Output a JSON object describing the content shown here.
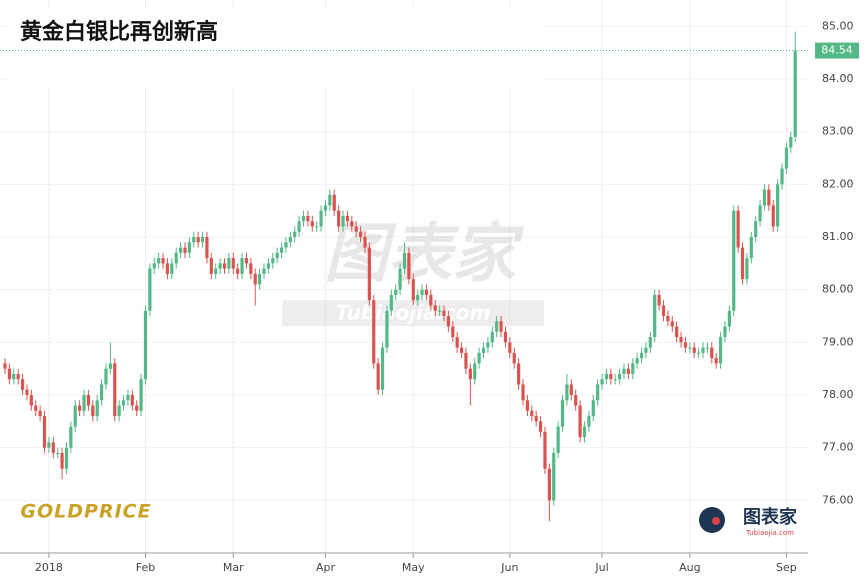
{
  "chart_data": {
    "type": "candlestick",
    "title": "黄金白银比再创新高",
    "up_color": "#53b885",
    "down_color": "#d9534f",
    "ylim": [
      75,
      85.5
    ],
    "yticks": [
      {
        "value": 76,
        "label": "76.00"
      },
      {
        "value": 77,
        "label": "77.00"
      },
      {
        "value": 78,
        "label": "78.00"
      },
      {
        "value": 79,
        "label": "79.00"
      },
      {
        "value": 80,
        "label": "80.00"
      },
      {
        "value": 81,
        "label": "81.00"
      },
      {
        "value": 82,
        "label": "82.00"
      },
      {
        "value": 83,
        "label": "83.00"
      },
      {
        "value": 84,
        "label": "84.00"
      },
      {
        "value": 85,
        "label": "85.00"
      }
    ],
    "last_price_line": true,
    "categories": [
      null,
      null,
      null,
      null,
      null,
      null,
      null,
      null,
      null,
      null,
      "2018",
      null,
      null,
      null,
      null,
      null,
      null,
      null,
      null,
      null,
      null,
      null,
      null,
      null,
      null,
      null,
      null,
      null,
      null,
      null,
      null,
      null,
      "Feb",
      null,
      null,
      null,
      null,
      null,
      null,
      null,
      null,
      null,
      null,
      null,
      null,
      null,
      null,
      null,
      null,
      null,
      null,
      null,
      "Mar",
      null,
      null,
      null,
      null,
      null,
      null,
      null,
      null,
      null,
      null,
      null,
      null,
      null,
      null,
      null,
      null,
      null,
      null,
      null,
      null,
      "Apr",
      null,
      null,
      null,
      null,
      null,
      null,
      null,
      null,
      null,
      null,
      null,
      null,
      null,
      null,
      null,
      null,
      null,
      null,
      null,
      "May",
      null,
      null,
      null,
      null,
      null,
      null,
      null,
      null,
      null,
      null,
      null,
      null,
      null,
      null,
      null,
      null,
      null,
      null,
      null,
      null,
      null,
      "Jun",
      null,
      null,
      null,
      null,
      null,
      null,
      null,
      null,
      null,
      null,
      null,
      null,
      null,
      null,
      null,
      null,
      null,
      null,
      null,
      null,
      "Jul",
      null,
      null,
      null,
      null,
      null,
      null,
      null,
      null,
      null,
      null,
      null,
      null,
      null,
      null,
      null,
      null,
      null,
      null,
      null,
      "Aug",
      null,
      null,
      null,
      null,
      null,
      null,
      null,
      null,
      null,
      null,
      null,
      null,
      null,
      null,
      null,
      null,
      null,
      null,
      null,
      null,
      null,
      "Sep",
      null,
      null
    ],
    "open": [
      78.6,
      78.5,
      78.3,
      78.4,
      78.3,
      78.1,
      78.0,
      77.8,
      77.7,
      77.6,
      77.0,
      77.1,
      76.9,
      76.9,
      76.6,
      77.0,
      77.4,
      77.8,
      77.7,
      78.0,
      77.8,
      77.6,
      77.9,
      78.2,
      78.5,
      78.6,
      77.6,
      77.8,
      77.9,
      78.0,
      77.8,
      77.7,
      78.3,
      79.6,
      80.4,
      80.5,
      80.6,
      80.5,
      80.3,
      80.5,
      80.7,
      80.8,
      80.7,
      80.9,
      81.0,
      80.9,
      81.0,
      80.6,
      80.3,
      80.4,
      80.5,
      80.4,
      80.6,
      80.4,
      80.3,
      80.6,
      80.5,
      80.3,
      80.1,
      80.3,
      80.4,
      80.5,
      80.6,
      80.7,
      80.8,
      80.9,
      81.0,
      81.1,
      81.3,
      81.4,
      81.3,
      81.2,
      81.2,
      81.5,
      81.6,
      81.8,
      81.5,
      81.2,
      81.4,
      81.3,
      81.2,
      81.1,
      81.0,
      80.8,
      79.8,
      78.6,
      78.1,
      78.9,
      79.6,
      79.9,
      80.0,
      80.4,
      80.7,
      80.2,
      79.8,
      79.9,
      80.0,
      79.9,
      79.7,
      79.6,
      79.6,
      79.5,
      79.3,
      79.1,
      78.9,
      78.8,
      78.5,
      78.3,
      78.6,
      78.8,
      78.9,
      79.0,
      79.2,
      79.4,
      79.2,
      79.0,
      78.8,
      78.6,
      78.2,
      77.9,
      77.7,
      77.6,
      77.5,
      77.3,
      76.6,
      76.0,
      76.9,
      77.4,
      77.9,
      78.2,
      78.0,
      77.8,
      77.2,
      77.4,
      77.6,
      77.9,
      78.2,
      78.3,
      78.4,
      78.3,
      78.3,
      78.4,
      78.5,
      78.4,
      78.6,
      78.7,
      78.8,
      78.9,
      79.1,
      79.9,
      79.7,
      79.5,
      79.4,
      79.3,
      79.1,
      79.0,
      78.9,
      78.9,
      78.8,
      78.8,
      78.9,
      78.9,
      78.7,
      78.6,
      79.1,
      79.3,
      79.6,
      81.5,
      80.8,
      80.2,
      80.6,
      81.0,
      81.3,
      81.6,
      81.9,
      81.6,
      81.2,
      82.0,
      82.3,
      82.7,
      82.9
    ],
    "high": [
      78.7,
      78.6,
      78.5,
      78.5,
      78.4,
      78.2,
      78.1,
      77.9,
      77.8,
      77.7,
      77.2,
      77.2,
      77.0,
      77.0,
      77.1,
      77.5,
      77.9,
      77.9,
      78.1,
      78.1,
      77.9,
      78.0,
      78.3,
      78.6,
      79.0,
      78.7,
      77.9,
      78.0,
      78.1,
      78.1,
      77.9,
      78.4,
      79.7,
      80.5,
      80.6,
      80.7,
      80.7,
      80.6,
      80.6,
      80.8,
      80.9,
      80.9,
      81.0,
      81.1,
      81.1,
      81.1,
      81.1,
      80.7,
      80.5,
      80.6,
      80.6,
      80.7,
      80.7,
      80.5,
      80.7,
      80.7,
      80.6,
      80.4,
      80.4,
      80.5,
      80.6,
      80.7,
      80.8,
      80.9,
      81.0,
      81.1,
      81.2,
      81.4,
      81.5,
      81.5,
      81.4,
      81.3,
      81.6,
      81.7,
      81.9,
      81.9,
      81.6,
      81.5,
      81.5,
      81.4,
      81.3,
      81.2,
      81.1,
      80.9,
      79.9,
      78.7,
      79.0,
      79.7,
      80.0,
      80.1,
      80.5,
      80.9,
      80.8,
      80.3,
      80.0,
      80.1,
      80.1,
      80.0,
      79.8,
      79.7,
      79.7,
      79.6,
      79.4,
      79.2,
      79.0,
      78.9,
      78.6,
      78.7,
      78.9,
      79.0,
      79.1,
      79.3,
      79.5,
      79.5,
      79.3,
      79.1,
      78.9,
      78.7,
      78.3,
      78.0,
      77.8,
      77.7,
      77.6,
      77.4,
      76.7,
      77.0,
      77.5,
      78.0,
      78.4,
      78.3,
      78.1,
      77.9,
      77.5,
      77.7,
      78.0,
      78.3,
      78.4,
      78.5,
      78.5,
      78.4,
      78.5,
      78.6,
      78.6,
      78.7,
      78.8,
      78.9,
      79.0,
      79.2,
      80.0,
      80.0,
      79.8,
      79.6,
      79.5,
      79.4,
      79.2,
      79.1,
      79.0,
      79.0,
      78.9,
      79.0,
      79.0,
      79.0,
      78.8,
      79.2,
      79.4,
      79.7,
      81.6,
      81.6,
      80.9,
      80.7,
      81.1,
      81.4,
      81.7,
      82.0,
      82.0,
      81.7,
      82.1,
      82.4,
      82.8,
      83.0,
      84.9
    ],
    "low": [
      78.4,
      78.2,
      78.2,
      78.2,
      78.0,
      77.9,
      77.7,
      77.6,
      77.5,
      76.9,
      76.9,
      76.8,
      76.8,
      76.4,
      76.5,
      76.9,
      77.3,
      77.6,
      77.6,
      77.7,
      77.5,
      77.5,
      77.8,
      78.1,
      78.4,
      77.5,
      77.5,
      77.7,
      77.8,
      77.7,
      77.6,
      77.6,
      78.2,
      79.5,
      80.3,
      80.4,
      80.4,
      80.2,
      80.2,
      80.4,
      80.6,
      80.6,
      80.6,
      80.8,
      80.8,
      80.8,
      80.5,
      80.2,
      80.2,
      80.3,
      80.3,
      80.3,
      80.3,
      80.2,
      80.2,
      80.4,
      80.2,
      79.7,
      80.0,
      80.2,
      80.3,
      80.4,
      80.5,
      80.6,
      80.7,
      80.8,
      80.9,
      81.0,
      81.2,
      81.2,
      81.1,
      81.1,
      81.1,
      81.4,
      81.5,
      81.4,
      81.1,
      81.1,
      81.2,
      81.1,
      81.0,
      80.9,
      80.7,
      79.7,
      78.5,
      78.0,
      78.0,
      78.8,
      79.5,
      79.8,
      79.9,
      80.3,
      80.1,
      79.7,
      79.7,
      79.8,
      79.8,
      79.6,
      79.5,
      79.5,
      79.4,
      79.2,
      79.0,
      78.8,
      78.7,
      78.4,
      77.8,
      78.2,
      78.5,
      78.7,
      78.8,
      78.9,
      79.1,
      79.1,
      78.9,
      78.7,
      78.5,
      78.1,
      77.8,
      77.6,
      77.5,
      77.4,
      77.2,
      76.5,
      75.6,
      75.9,
      76.8,
      77.3,
      77.8,
      77.9,
      77.7,
      77.1,
      77.1,
      77.3,
      77.5,
      77.8,
      78.1,
      78.2,
      78.2,
      78.2,
      78.2,
      78.3,
      78.3,
      78.3,
      78.5,
      78.6,
      78.7,
      78.8,
      79.0,
      79.6,
      79.4,
      79.3,
      79.2,
      79.0,
      78.9,
      78.8,
      78.8,
      78.7,
      78.7,
      78.7,
      78.8,
      78.6,
      78.5,
      78.5,
      79.0,
      79.2,
      79.5,
      80.7,
      80.1,
      80.1,
      80.5,
      80.9,
      81.2,
      81.5,
      81.5,
      81.1,
      81.1,
      81.9,
      82.2,
      82.6,
      82.8
    ],
    "close": [
      78.5,
      78.3,
      78.4,
      78.3,
      78.1,
      78.0,
      77.8,
      77.7,
      77.6,
      77.0,
      77.1,
      76.9,
      76.9,
      76.6,
      77.0,
      77.4,
      77.8,
      77.7,
      78.0,
      77.8,
      77.6,
      77.9,
      78.2,
      78.5,
      78.6,
      77.6,
      77.8,
      77.9,
      78.0,
      77.8,
      77.7,
      78.3,
      79.6,
      80.4,
      80.5,
      80.6,
      80.5,
      80.3,
      80.5,
      80.7,
      80.8,
      80.7,
      80.9,
      81.0,
      80.9,
      81.0,
      80.6,
      80.3,
      80.4,
      80.5,
      80.4,
      80.6,
      80.4,
      80.3,
      80.6,
      80.5,
      80.3,
      80.1,
      80.3,
      80.4,
      80.5,
      80.6,
      80.7,
      80.8,
      80.9,
      81.0,
      81.1,
      81.3,
      81.4,
      81.3,
      81.2,
      81.2,
      81.5,
      81.6,
      81.8,
      81.5,
      81.2,
      81.4,
      81.3,
      81.2,
      81.1,
      81.0,
      80.8,
      79.8,
      78.6,
      78.1,
      78.9,
      79.6,
      79.9,
      80.0,
      80.4,
      80.7,
      80.2,
      79.8,
      79.9,
      80.0,
      79.9,
      79.7,
      79.6,
      79.6,
      79.5,
      79.3,
      79.1,
      78.9,
      78.8,
      78.5,
      78.3,
      78.6,
      78.8,
      78.9,
      79.0,
      79.2,
      79.4,
      79.2,
      79.0,
      78.8,
      78.6,
      78.2,
      77.9,
      77.7,
      77.6,
      77.5,
      77.3,
      76.6,
      76.0,
      76.9,
      77.4,
      77.9,
      78.2,
      78.0,
      77.8,
      77.2,
      77.4,
      77.6,
      77.9,
      78.2,
      78.3,
      78.4,
      78.3,
      78.3,
      78.4,
      78.5,
      78.4,
      78.6,
      78.7,
      78.8,
      78.9,
      79.1,
      79.9,
      79.7,
      79.5,
      79.4,
      79.3,
      79.1,
      79.0,
      78.9,
      78.9,
      78.8,
      78.8,
      78.9,
      78.9,
      78.7,
      78.6,
      79.1,
      79.3,
      79.6,
      81.5,
      80.8,
      80.2,
      80.6,
      81.0,
      81.3,
      81.6,
      81.9,
      81.6,
      81.2,
      82.0,
      82.3,
      82.7,
      82.9,
      84.54
    ],
    "watermark": {
      "name": "图表家",
      "url": "Tubiaojia.com"
    },
    "brand_left": "GOLDPRICE",
    "brand_right": {
      "name": "图表家",
      "url": "Tubiaojia.com"
    }
  }
}
